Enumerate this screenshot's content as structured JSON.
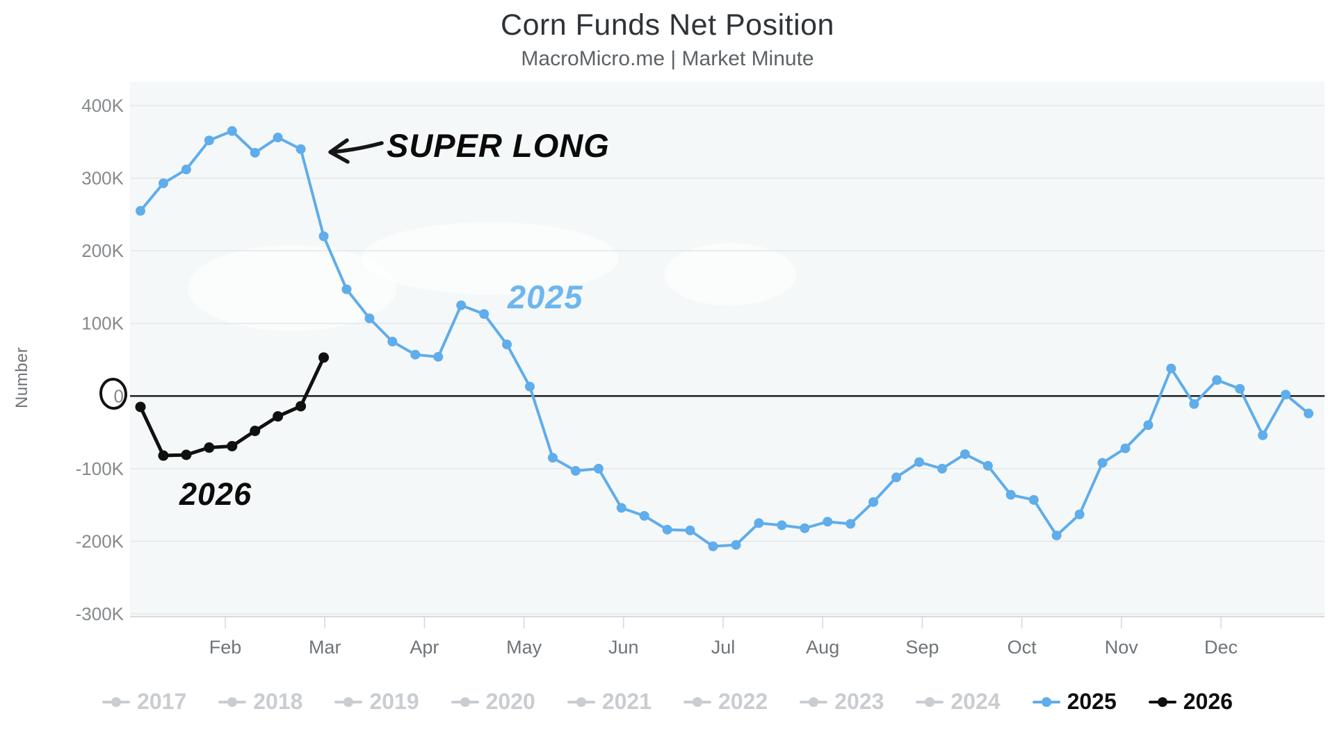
{
  "header": {
    "title": "Corn Funds Net Position",
    "subtitle": "MacroMicro.me | Market Minute"
  },
  "chart_data": {
    "type": "line",
    "title": "Corn Funds Net Position",
    "subtitle": "MacroMicro.me | Market Minute",
    "ylabel": "Number",
    "xlabel": "",
    "x_unit": "weekly observations, January through December",
    "ylim_k": [
      -300,
      400
    ],
    "grid": "horizontal",
    "legend_position": "bottom",
    "yticks_k": [
      400,
      300,
      200,
      100,
      0,
      -100,
      -200,
      -300
    ],
    "ytick_labels": [
      "400K",
      "300K",
      "200K",
      "100K",
      "0",
      "-100K",
      "-200K",
      "-300K"
    ],
    "xtick_labels": [
      "Feb",
      "Mar",
      "Apr",
      "May",
      "Jun",
      "Jul",
      "Aug",
      "Sep",
      "Oct",
      "Nov",
      "Dec"
    ],
    "series": [
      {
        "name": "2025",
        "color": "#5fadeb",
        "values_k": [
          255,
          293,
          312,
          352,
          365,
          335,
          356,
          340,
          220,
          147,
          107,
          75,
          57,
          54,
          125,
          113,
          71,
          13,
          -85,
          -103,
          -100,
          -154,
          -165,
          -184,
          -185,
          -207,
          -205,
          -175,
          -178,
          -182,
          -173,
          -176,
          -146,
          -112,
          -91,
          -100,
          -80,
          -96,
          -136,
          -143,
          -192,
          -163,
          -92,
          -72,
          -40,
          38,
          -11,
          22,
          10,
          -54,
          2,
          -24
        ]
      },
      {
        "name": "2026",
        "color": "#101010",
        "values_k": [
          -15,
          -82,
          -81,
          -71,
          -69,
          -48,
          -28,
          -14,
          53
        ]
      }
    ],
    "annotations": [
      {
        "id": "super-long",
        "text": "SUPER LONG"
      },
      {
        "id": "series-label-2025",
        "text": "2025"
      },
      {
        "id": "series-label-2026",
        "text": "2026"
      }
    ]
  },
  "legend": {
    "items": [
      {
        "label": "2017",
        "state": "inactive",
        "color": "#c9cdd1"
      },
      {
        "label": "2018",
        "state": "inactive",
        "color": "#c9cdd1"
      },
      {
        "label": "2019",
        "state": "inactive",
        "color": "#c9cdd1"
      },
      {
        "label": "2020",
        "state": "inactive",
        "color": "#c9cdd1"
      },
      {
        "label": "2021",
        "state": "inactive",
        "color": "#c9cdd1"
      },
      {
        "label": "2022",
        "state": "inactive",
        "color": "#c9cdd1"
      },
      {
        "label": "2023",
        "state": "inactive",
        "color": "#c9cdd1"
      },
      {
        "label": "2024",
        "state": "inactive",
        "color": "#c9cdd1"
      },
      {
        "label": "2025",
        "state": "active",
        "color": "#5fadeb"
      },
      {
        "label": "2026",
        "state": "active",
        "color": "#101010"
      }
    ]
  }
}
